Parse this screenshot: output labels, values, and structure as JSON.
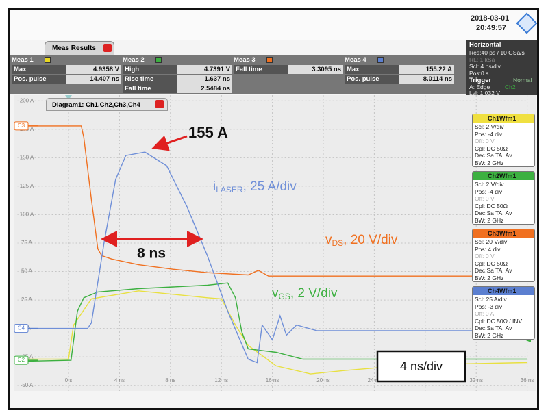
{
  "header": {
    "date": "2018-03-01",
    "time": "20:49:57"
  },
  "meas_results": {
    "title": "Meas Results",
    "groups": [
      {
        "name": "Meas 1",
        "color": "#e8d820",
        "rows": [
          {
            "label": "Max",
            "value": "4.9358 V"
          },
          {
            "label": "Pos. pulse",
            "value": "14.407 ns"
          }
        ]
      },
      {
        "name": "Meas 2",
        "color": "#3cb040",
        "rows": [
          {
            "label": "High",
            "value": "4.7391 V"
          },
          {
            "label": "Rise time",
            "value": "1.637 ns"
          },
          {
            "label": "Fall time",
            "value": "2.5484 ns"
          }
        ]
      },
      {
        "name": "Meas 3",
        "color": "#f07020",
        "rows": [
          {
            "label": "Fall time",
            "value": "3.3095 ns"
          }
        ]
      },
      {
        "name": "Meas 4",
        "color": "#5b7fd0",
        "rows": [
          {
            "label": "Max",
            "value": "155.22 A"
          },
          {
            "label": "Pos. pulse",
            "value": "8.0114 ns"
          }
        ]
      }
    ]
  },
  "horizontal": {
    "title": "Horizontal",
    "lines": [
      "Res:40 ps / 10 GSa/s",
      "RL: 1 kSa",
      "Scl: 4 ns/div",
      "Pos:0 s"
    ]
  },
  "trigger": {
    "title": "Trigger",
    "mode": "Normal",
    "source": "A: Edge",
    "channel": "Ch2",
    "level": "Lvl: 1.032 V"
  },
  "channels": [
    {
      "name": "Ch1Wfm1",
      "color": "#f0e040",
      "lines": [
        "Scl: 2 V/div",
        "Pos: -4 div",
        "Off: 0 V",
        "Cpl: DC 50Ω",
        "Dec:Sa    TA: Av",
        "BW: 2 GHz"
      ]
    },
    {
      "name": "Ch2Wfm1",
      "color": "#3cb040",
      "lines": [
        "Scl: 2 V/div",
        "Pos: -4 div",
        "Off: 0 V",
        "Cpl: DC 50Ω",
        "Dec:Sa    TA: Av",
        "BW: 2 GHz"
      ]
    },
    {
      "name": "Ch3Wfm1",
      "color": "#f07020",
      "lines": [
        "Scl: 20 V/div",
        "Pos: 4 div",
        "Off: 0 V",
        "Cpl: DC 50Ω",
        "Dec:Sa    TA: Av",
        "BW: 2 GHz"
      ]
    },
    {
      "name": "Ch4Wfm1",
      "color": "#5b7fd0",
      "lines": [
        "Scl: 25 A/div",
        "Pos: -3 div",
        "Off: 0 A",
        "Cpl: DC 50Ω / INV",
        "Dec:Sa    TA: Av",
        "BW: 2 GHz"
      ]
    }
  ],
  "chart_data": {
    "type": "line",
    "title": "Diagram1: Ch1,Ch2,Ch3,Ch4",
    "xlim": [
      -4,
      36
    ],
    "ylim": [
      -55,
      205
    ],
    "grid": true,
    "xticks": [
      {
        "value": 0,
        "label": "0 s"
      },
      {
        "value": 4,
        "label": "4 ns"
      },
      {
        "value": 8,
        "label": "8 ns"
      },
      {
        "value": 12,
        "label": "12 ns"
      },
      {
        "value": 16,
        "label": "16 ns"
      },
      {
        "value": 20,
        "label": "20 ns"
      },
      {
        "value": 24,
        "label": "24 ns"
      },
      {
        "value": 28,
        "label": "28 ns"
      },
      {
        "value": 32,
        "label": "32 ns"
      },
      {
        "value": 36,
        "label": "36 ns"
      }
    ],
    "yticks": [
      {
        "value": 200,
        "label": "200 A"
      },
      {
        "value": 175,
        "label": "175 A"
      },
      {
        "value": 150,
        "label": "150 A"
      },
      {
        "value": 125,
        "label": "125 A"
      },
      {
        "value": 100,
        "label": "100 A"
      },
      {
        "value": 75,
        "label": "75 A"
      },
      {
        "value": 50,
        "label": "50 A"
      },
      {
        "value": 25,
        "label": "25 A"
      },
      {
        "value": 0,
        "label": "0 A"
      },
      {
        "value": -25,
        "label": "-25 A"
      },
      {
        "value": -50,
        "label": "-50 A"
      }
    ],
    "series": [
      {
        "name": "Ch1",
        "color": "#e8e040",
        "x": [
          -4,
          0,
          0.4,
          1.8,
          5.5,
          8.2,
          10.9,
          12,
          13.1,
          14.1,
          16.3,
          19,
          21.7,
          27,
          36
        ],
        "values": [
          -27,
          -27,
          3,
          26,
          33,
          30,
          27,
          26,
          3,
          -15,
          -33,
          -40,
          -37,
          -32,
          -30
        ]
      },
      {
        "name": "Ch2",
        "color": "#3cb040",
        "x": [
          -4,
          0.2,
          0.7,
          1.2,
          2.3,
          5.5,
          10.9,
          12.5,
          13.1,
          13.6,
          14.1,
          16.3,
          18.4,
          36
        ],
        "values": [
          -29,
          -28,
          15,
          27,
          32,
          35,
          38,
          40,
          27,
          -3,
          -18,
          -21,
          -27,
          -27
        ]
      },
      {
        "name": "Ch3",
        "color": "#f07020",
        "x": [
          -4,
          1,
          1.2,
          1.8,
          2.3,
          2.6,
          3.4,
          5.5,
          8.2,
          10.9,
          14.1,
          14.9,
          15.7,
          36
        ],
        "values": [
          178,
          178,
          168,
          113,
          70,
          64,
          61,
          56,
          52,
          49,
          47,
          51,
          46,
          46
        ]
      },
      {
        "name": "Ch4",
        "color": "#6f8fd8",
        "x": [
          -4,
          1.5,
          1.8,
          2.8,
          3.7,
          4.5,
          6,
          7.7,
          9.3,
          10.9,
          12.5,
          14.1,
          14.8,
          15.2,
          16,
          16.6,
          17.1,
          17.9,
          19.5,
          36
        ],
        "values": [
          0,
          0,
          5,
          76,
          131,
          152,
          155,
          143,
          107,
          64,
          15,
          -27,
          -30,
          3,
          -10,
          11,
          -6,
          3,
          -2,
          -2
        ]
      }
    ],
    "channel_markers": [
      {
        "label": "C3",
        "value": 178,
        "color": "#f07020"
      },
      {
        "label": "C4",
        "value": 0,
        "color": "#5b7fd0"
      },
      {
        "label": "C2",
        "value": -28,
        "color": "#3cb040"
      }
    ],
    "annotations": {
      "peak": "155 A",
      "pulse_width": "8 ns",
      "timebase": "4 ns/div",
      "i_laser": {
        "main": "i",
        "sub": "LASER",
        "rest": ", 25 A/div"
      },
      "v_ds": {
        "main": "v",
        "sub": "DS",
        "rest": ", 20 V/div"
      },
      "v_gs": {
        "main": "v",
        "sub": "GS",
        "rest": ", 2 V/div"
      }
    }
  }
}
